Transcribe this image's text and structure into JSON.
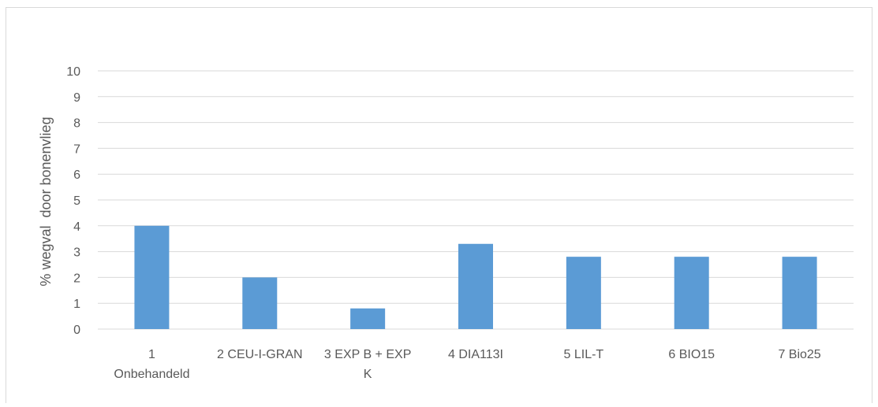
{
  "chart_data": {
    "type": "bar",
    "categories": [
      [
        "1",
        "Onbehandeld"
      ],
      [
        "2 CEU-I-GRAN"
      ],
      [
        "3 EXP B + EXP",
        "K"
      ],
      [
        "4 DIA113I"
      ],
      [
        "5 LIL-T"
      ],
      [
        "6 BIO15"
      ],
      [
        "7 Bio25"
      ]
    ],
    "values": [
      4.0,
      2.0,
      0.8,
      3.3,
      2.8,
      2.8,
      2.8
    ],
    "title": "",
    "xlabel": "",
    "ylabel": "% wegval  door bonenvlieg",
    "ylim": [
      0,
      10
    ],
    "yticks": [
      0,
      1,
      2,
      3,
      4,
      5,
      6,
      7,
      8,
      9,
      10
    ],
    "grid": true,
    "legend": "none",
    "bar_color": "#5b9bd5",
    "grid_color": "#d9d9d9",
    "text_color": "#595959"
  }
}
